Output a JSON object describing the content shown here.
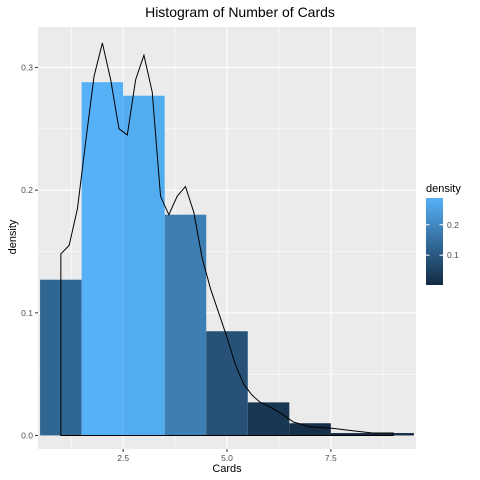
{
  "chart_data": {
    "type": "bar",
    "title": "Histogram of Number of Cards",
    "xlabel": "Cards",
    "ylabel": "density",
    "xlim": [
      0.45,
      9.55
    ],
    "ylim": [
      -0.011,
      0.333
    ],
    "grid": true,
    "x_ticks": [
      2.5,
      5.0,
      7.5
    ],
    "x_tick_labels": [
      "2.5",
      "5.0",
      "7.5"
    ],
    "y_ticks": [
      0.0,
      0.1,
      0.2,
      0.3
    ],
    "y_tick_labels": [
      "0.0",
      "0.1",
      "0.2",
      "0.3"
    ],
    "bins": [
      {
        "x0": 0.5,
        "x1": 1.5,
        "value": 0.127
      },
      {
        "x0": 1.5,
        "x1": 2.5,
        "value": 0.288
      },
      {
        "x0": 2.5,
        "x1": 3.5,
        "value": 0.277
      },
      {
        "x0": 3.5,
        "x1": 4.5,
        "value": 0.18
      },
      {
        "x0": 4.5,
        "x1": 5.5,
        "value": 0.085
      },
      {
        "x0": 5.5,
        "x1": 6.5,
        "value": 0.027
      },
      {
        "x0": 6.5,
        "x1": 7.5,
        "value": 0.01
      },
      {
        "x0": 7.5,
        "x1": 8.5,
        "value": 0.002
      },
      {
        "x0": 8.5,
        "x1": 9.5,
        "value": 0.002
      }
    ],
    "density_curve": {
      "x": [
        1.0,
        1.0,
        1.2,
        1.4,
        1.6,
        1.8,
        2.0,
        2.2,
        2.4,
        2.6,
        2.8,
        3.0,
        3.2,
        3.4,
        3.6,
        3.8,
        4.0,
        4.2,
        4.4,
        4.6,
        4.8,
        5.0,
        5.2,
        5.4,
        5.6,
        5.8,
        6.0,
        6.3,
        6.6,
        7.0,
        7.5,
        8.0,
        8.5,
        9.0,
        9.0
      ],
      "y": [
        0.0,
        0.148,
        0.155,
        0.185,
        0.24,
        0.293,
        0.32,
        0.29,
        0.25,
        0.245,
        0.29,
        0.31,
        0.28,
        0.195,
        0.18,
        0.195,
        0.203,
        0.182,
        0.145,
        0.12,
        0.1,
        0.08,
        0.058,
        0.042,
        0.033,
        0.027,
        0.024,
        0.018,
        0.011,
        0.007,
        0.006,
        0.004,
        0.002,
        0.002,
        0.0
      ]
    },
    "legend": {
      "title": "density",
      "position": "right",
      "labels": [
        "0.2",
        "0.1"
      ],
      "label_values": [
        0.2,
        0.1
      ],
      "color_low": "#132B43",
      "color_high": "#56B1F7",
      "range": [
        0.002,
        0.288
      ]
    },
    "colors": {
      "panel_background": "#ebebeb",
      "grid_major": "#ffffff",
      "curve": "#000000"
    }
  }
}
